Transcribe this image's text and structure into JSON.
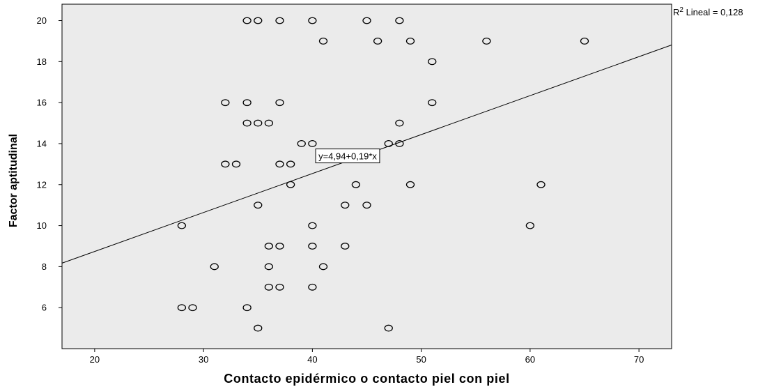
{
  "chart_data": {
    "type": "scatter",
    "title": "",
    "xlabel": "Contacto epidérmico o contacto piel con piel",
    "ylabel": "Factor aptitudinal",
    "xlim": [
      17,
      73
    ],
    "ylim": [
      4,
      20.8
    ],
    "x_ticks": [
      20,
      30,
      40,
      50,
      60,
      70
    ],
    "y_ticks": [
      6,
      8,
      10,
      12,
      14,
      16,
      18,
      20
    ],
    "grid": false,
    "plot_background": "#ebebeb",
    "marker_color": "#000000",
    "points": [
      {
        "x": 34,
        "y": 20
      },
      {
        "x": 35,
        "y": 20
      },
      {
        "x": 37,
        "y": 20
      },
      {
        "x": 40,
        "y": 20
      },
      {
        "x": 45,
        "y": 20
      },
      {
        "x": 48,
        "y": 20
      },
      {
        "x": 41,
        "y": 19
      },
      {
        "x": 46,
        "y": 19
      },
      {
        "x": 49,
        "y": 19
      },
      {
        "x": 56,
        "y": 19
      },
      {
        "x": 65,
        "y": 19
      },
      {
        "x": 51,
        "y": 18
      },
      {
        "x": 32,
        "y": 16
      },
      {
        "x": 34,
        "y": 16
      },
      {
        "x": 37,
        "y": 16
      },
      {
        "x": 51,
        "y": 16
      },
      {
        "x": 34,
        "y": 15
      },
      {
        "x": 35,
        "y": 15
      },
      {
        "x": 36,
        "y": 15
      },
      {
        "x": 48,
        "y": 15
      },
      {
        "x": 39,
        "y": 14
      },
      {
        "x": 40,
        "y": 14
      },
      {
        "x": 47,
        "y": 14
      },
      {
        "x": 48,
        "y": 14
      },
      {
        "x": 32,
        "y": 13
      },
      {
        "x": 33,
        "y": 13
      },
      {
        "x": 37,
        "y": 13
      },
      {
        "x": 38,
        "y": 13
      },
      {
        "x": 38,
        "y": 12
      },
      {
        "x": 44,
        "y": 12
      },
      {
        "x": 49,
        "y": 12
      },
      {
        "x": 61,
        "y": 12
      },
      {
        "x": 35,
        "y": 11
      },
      {
        "x": 43,
        "y": 11
      },
      {
        "x": 45,
        "y": 11
      },
      {
        "x": 28,
        "y": 10
      },
      {
        "x": 40,
        "y": 10
      },
      {
        "x": 60,
        "y": 10
      },
      {
        "x": 36,
        "y": 9
      },
      {
        "x": 37,
        "y": 9
      },
      {
        "x": 40,
        "y": 9
      },
      {
        "x": 43,
        "y": 9
      },
      {
        "x": 31,
        "y": 8
      },
      {
        "x": 36,
        "y": 8
      },
      {
        "x": 41,
        "y": 8
      },
      {
        "x": 36,
        "y": 7
      },
      {
        "x": 37,
        "y": 7
      },
      {
        "x": 40,
        "y": 7
      },
      {
        "x": 28,
        "y": 6
      },
      {
        "x": 29,
        "y": 6
      },
      {
        "x": 34,
        "y": 6
      },
      {
        "x": 35,
        "y": 5
      },
      {
        "x": 47,
        "y": 5
      }
    ],
    "fit_line": {
      "intercept": 4.94,
      "slope": 0.19,
      "equation_label": "y=4,94+0,19*x",
      "label_anchor": {
        "x": 40.3,
        "y": 13.4
      }
    },
    "r_squared_label": {
      "prefix": "R",
      "sup": "2",
      "suffix": " Lineal = 0,128"
    }
  }
}
